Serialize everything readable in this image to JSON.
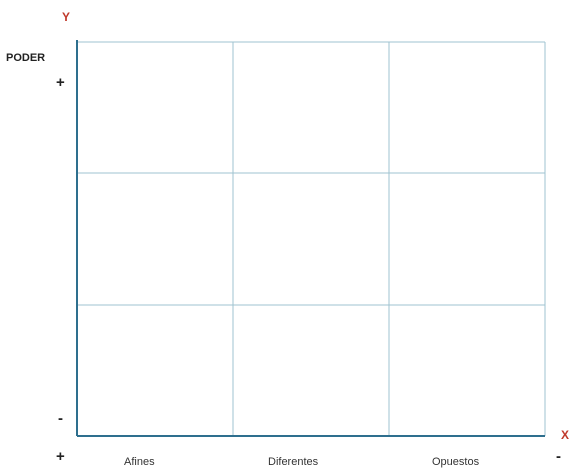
{
  "y_axis": {
    "letter": "Y",
    "title": "PODER",
    "top_sign": "+",
    "bottom_sign": "-"
  },
  "x_axis": {
    "letter": "X",
    "left_sign": "+",
    "right_sign": "-",
    "categories": [
      "Afines",
      "Diferentes",
      "Opuestos"
    ]
  },
  "grid": {
    "rows": 3,
    "columns": 3
  },
  "colors": {
    "grid_line": "#9fc3d0",
    "axis_line": "#2e6f8e",
    "axis_letter": "#c0392b"
  }
}
